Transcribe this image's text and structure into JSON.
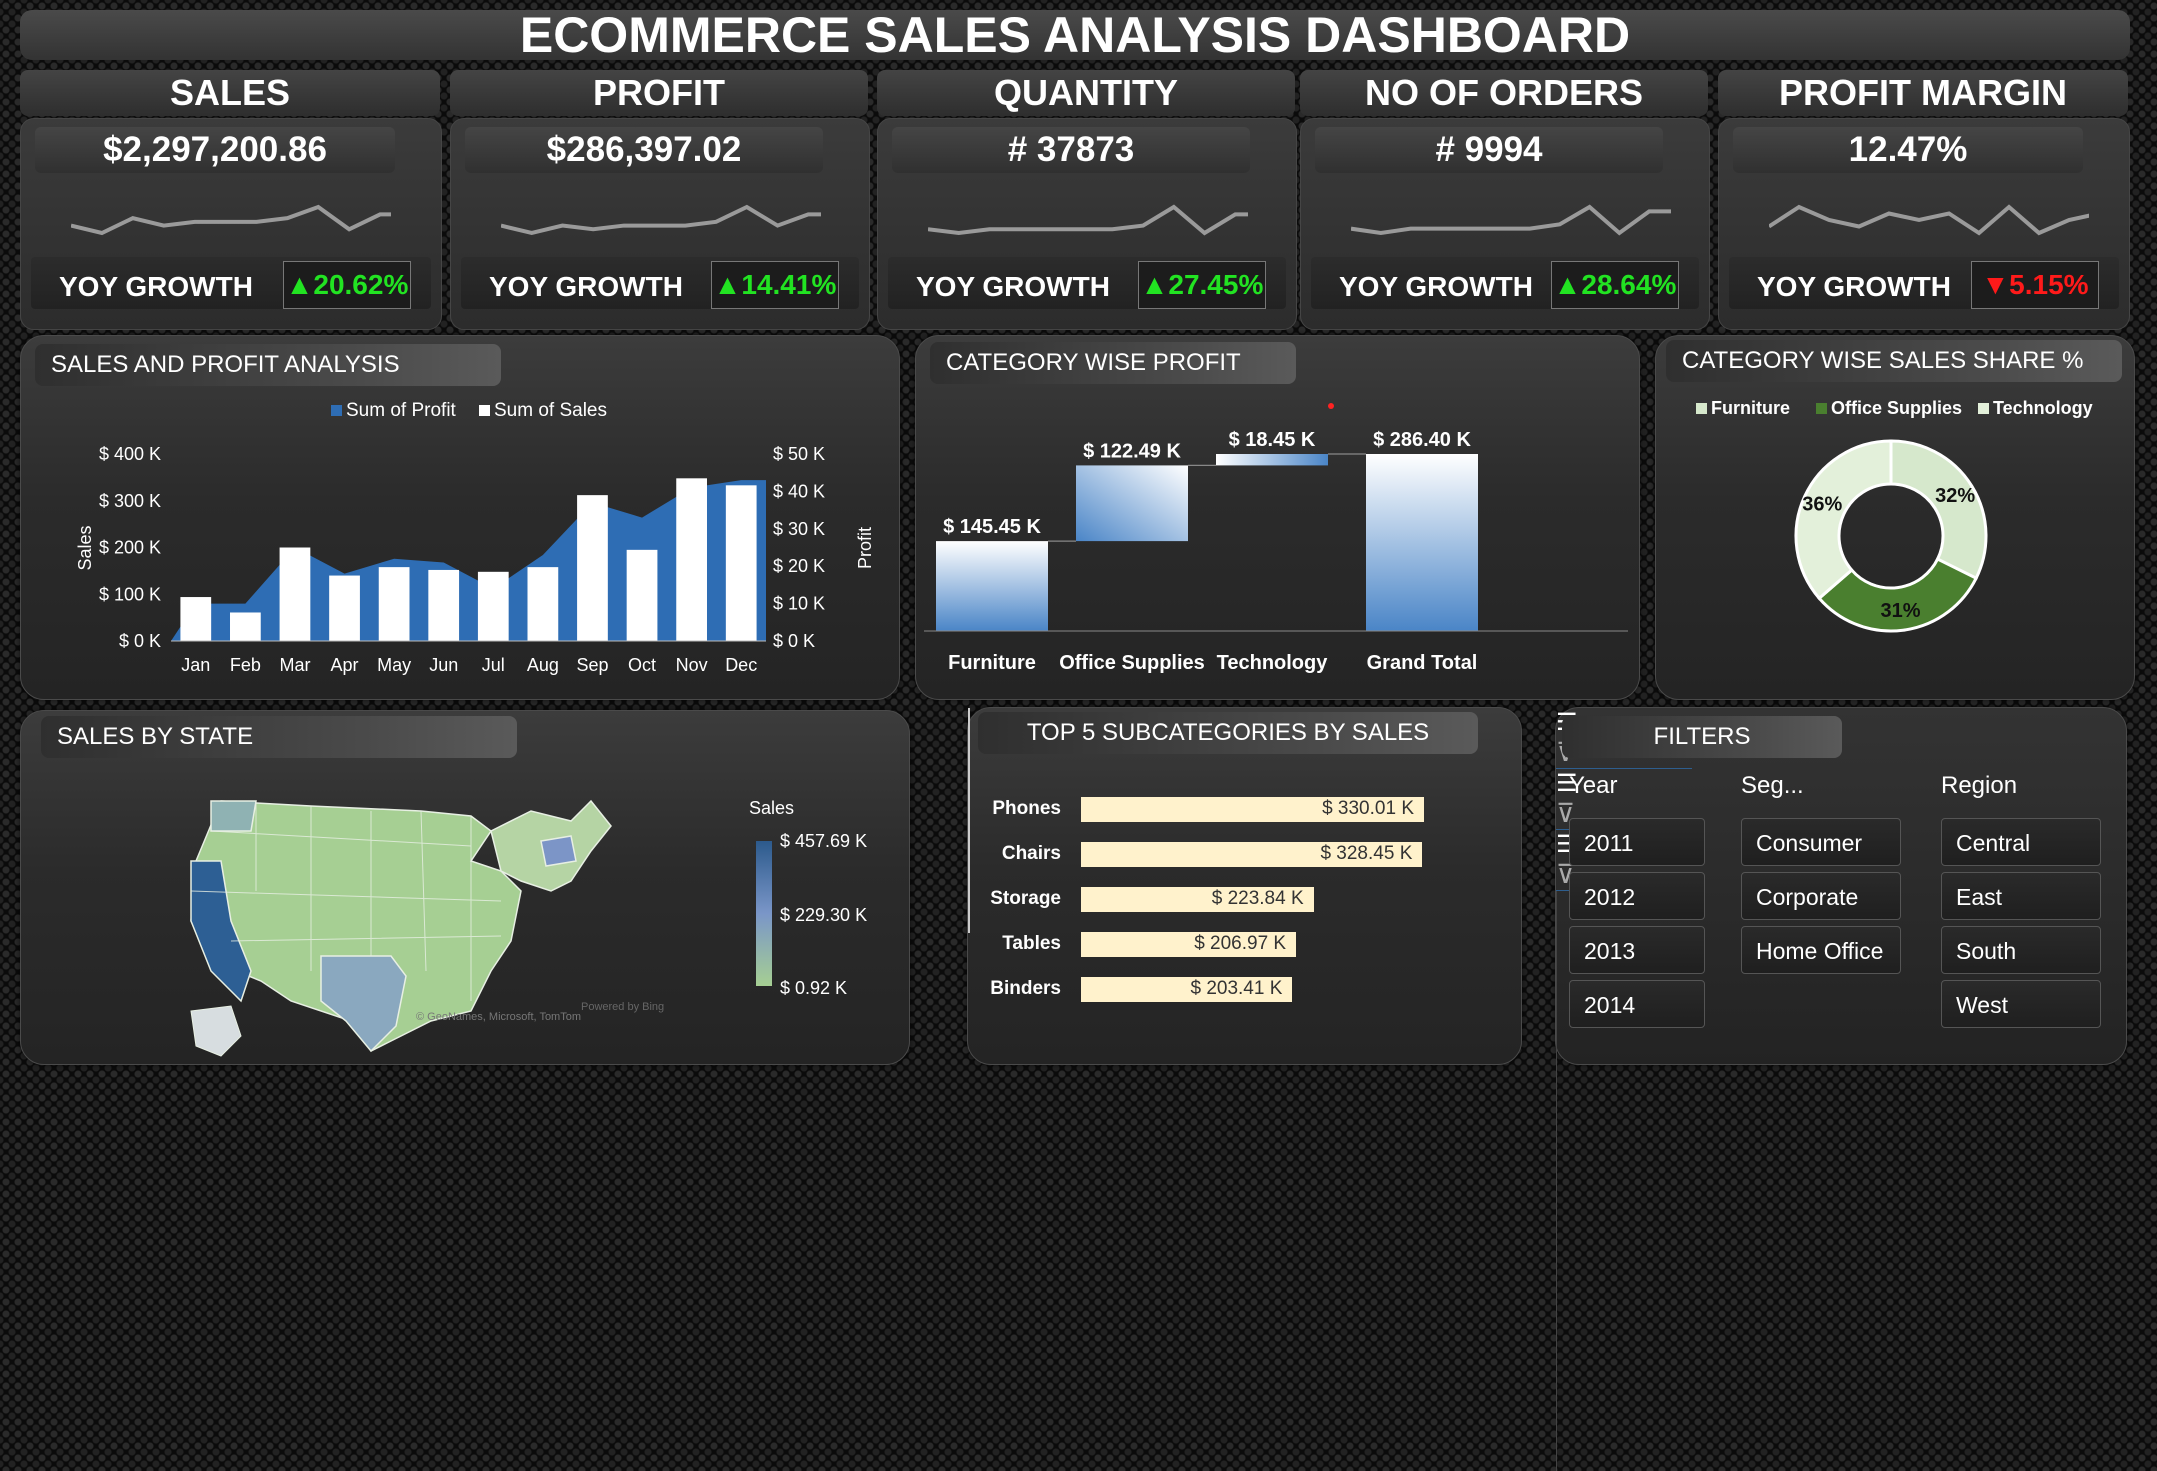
{
  "title": "ECOMMERCE SALES ANALYSIS DASHBOARD",
  "kpis": [
    {
      "label": "SALES",
      "value": "$2,297,200.86",
      "yoy_label": "YOY GROWTH",
      "yoy": "▲20.62%",
      "yoy_dir": "up",
      "spark": [
        5,
        3,
        7,
        5,
        6,
        6,
        6,
        7,
        10,
        4,
        8,
        8
      ]
    },
    {
      "label": "PROFIT",
      "value": "$286,397.02",
      "yoy_label": "YOY GROWTH",
      "yoy": "▲14.41%",
      "yoy_dir": "up",
      "spark": [
        5,
        3,
        5,
        4,
        5,
        5,
        5,
        6,
        10,
        5,
        8,
        8
      ]
    },
    {
      "label": "QUANTITY",
      "value": "# 37873",
      "yoy_label": "YOY GROWTH",
      "yoy": "▲27.45%",
      "yoy_dir": "up",
      "spark": [
        5,
        4,
        5,
        5,
        5,
        5,
        5,
        6,
        11,
        4,
        9,
        9
      ]
    },
    {
      "label": "NO OF ORDERS",
      "value": "# 9994",
      "yoy_label": "YOY GROWTH",
      "yoy": "▲28.64%",
      "yoy_dir": "up",
      "spark": [
        5,
        4,
        5,
        5,
        5,
        5,
        5,
        6,
        10,
        4,
        9,
        9
      ]
    },
    {
      "label": "PROFIT MARGIN",
      "value": "12.47%",
      "yoy_label": "YOY GROWTH",
      "yoy": "▼5.15%",
      "yoy_dir": "down",
      "spark": [
        6,
        9,
        7,
        6,
        8,
        7,
        8,
        5,
        9,
        5,
        7,
        8
      ]
    }
  ],
  "colors": {
    "up": "#22e322",
    "down": "#ff1a1a",
    "profit_series": "#2e6db4",
    "sales_series": "#ffffff",
    "hbar": "#fff2cc"
  },
  "sales_profit": {
    "tab": "SALES AND PROFIT ANALYSIS",
    "legend": [
      "Sum of Profit",
      "Sum of Sales"
    ],
    "left_label": "Sales",
    "right_label": "Profit"
  },
  "category_profit": {
    "tab": "CATEGORY WISE PROFIT"
  },
  "category_share": {
    "tab": "CATEGORY WISE SALES SHARE %",
    "legend": [
      "Furniture",
      "Office Supplies",
      "Technology"
    ]
  },
  "states": {
    "tab": "SALES BY STATE",
    "legend_title": "Sales",
    "legend_labels": [
      "$ 457.69 K",
      "$ 229.30 K",
      "$ 0.92 K"
    ],
    "attribution": "© GeoNames, Microsoft, TomTom",
    "powered": "Powered by Bing"
  },
  "subcats": {
    "tab": "TOP 5 SUBCATEGORIES BY SALES"
  },
  "filters": {
    "tab": "FILTERS",
    "year": {
      "label": "Year",
      "items": [
        "2011",
        "2012",
        "2013",
        "2014"
      ]
    },
    "segment": {
      "label": "Seg...",
      "items": [
        "Consumer",
        "Corporate",
        "Home Office"
      ]
    },
    "region": {
      "label": "Region",
      "items": [
        "Central",
        "East",
        "South",
        "West"
      ]
    }
  },
  "chart_data": [
    {
      "type": "bar",
      "title": "SALES AND PROFIT ANALYSIS",
      "categories": [
        "Jan",
        "Feb",
        "Mar",
        "Apr",
        "May",
        "Jun",
        "Jul",
        "Aug",
        "Sep",
        "Oct",
        "Nov",
        "Dec"
      ],
      "series": [
        {
          "name": "Sum of Sales",
          "type": "bar",
          "axis": "left",
          "values": [
            94,
            61,
            200,
            140,
            158,
            152,
            148,
            158,
            312,
            195,
            348,
            333
          ]
        },
        {
          "name": "Sum of Profit",
          "type": "area",
          "axis": "right",
          "values": [
            10,
            10,
            25,
            18,
            22,
            21,
            14,
            23,
            37,
            33,
            41,
            43
          ]
        }
      ],
      "ylabel": "Sales",
      "y2label": "Profit",
      "yticks": [
        "$ 0 K",
        "$ 100 K",
        "$ 200 K",
        "$ 300 K",
        "$ 400 K"
      ],
      "ylim": [
        0,
        400
      ],
      "y2ticks": [
        "$ 0 K",
        "$ 10 K",
        "$ 20 K",
        "$ 30 K",
        "$ 40 K",
        "$ 50 K"
      ],
      "y2lim": [
        0,
        50
      ]
    },
    {
      "type": "bar",
      "subtype": "waterfall",
      "title": "CATEGORY WISE PROFIT",
      "categories": [
        "Furniture",
        "Office Supplies",
        "Technology",
        "Grand Total"
      ],
      "values": [
        145.45,
        122.49,
        18.45,
        286.4
      ],
      "labels": [
        "$ 145.45 K",
        "$ 122.49 K",
        "$ 18.45 K",
        "$ 286.40 K"
      ]
    },
    {
      "type": "pie",
      "subtype": "donut",
      "title": "CATEGORY WISE SALES SHARE %",
      "categories": [
        "Furniture",
        "Office Supplies",
        "Technology"
      ],
      "values": [
        32,
        31,
        36
      ],
      "labels": [
        "32%",
        "31%",
        "36%"
      ],
      "colors": [
        "#d6e8cc",
        "#4a7f2f",
        "#e3f0da"
      ]
    },
    {
      "type": "bar",
      "orientation": "horizontal",
      "title": "TOP 5 SUBCATEGORIES BY SALES",
      "categories": [
        "Phones",
        "Chairs",
        "Storage",
        "Tables",
        "Binders"
      ],
      "values": [
        330.01,
        328.45,
        223.84,
        206.97,
        203.41
      ],
      "labels": [
        "$ 330.01 K",
        "$ 328.45 K",
        "$ 223.84 K",
        "$ 206.97 K",
        "$ 203.41 K"
      ]
    }
  ]
}
